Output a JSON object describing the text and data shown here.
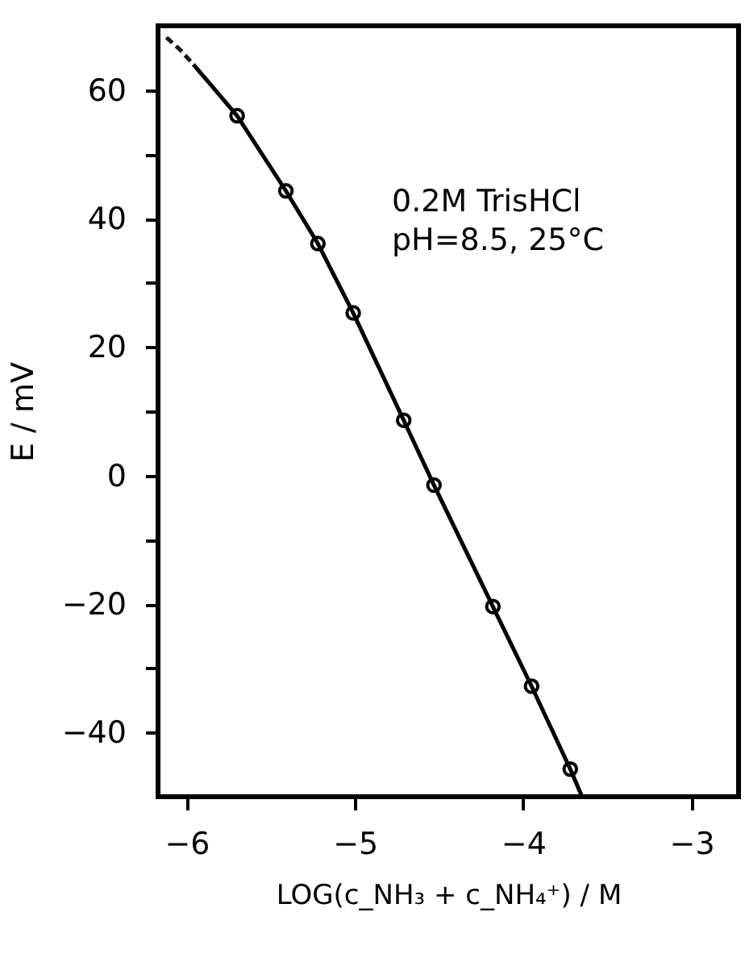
{
  "chart_data": {
    "type": "scatter",
    "xlabel": "LOG(c_NH₃ + c_NH₄⁺) / M",
    "ylabel": "E / mV",
    "annotations": [
      "0.2M TrisHCl",
      "pH=8.5,  25°C"
    ],
    "xlim": [
      -6.17,
      -2.72
    ],
    "xticks": [
      -6,
      -5,
      -4,
      -3
    ],
    "ylim": [
      -50,
      70
    ],
    "yticks": [
      60,
      {
        "value": 50,
        "label": null
      },
      40,
      {
        "value": 30,
        "label": null
      },
      20,
      {
        "value": 10,
        "label": null
      },
      0,
      {
        "value": -10,
        "label": null
      },
      -20,
      {
        "value": -30,
        "label": null
      },
      -40
    ],
    "grid": false,
    "series": [
      {
        "marker": "circle",
        "color": "#000000",
        "x": [
          -5.7,
          -5.41,
          -5.22,
          -5.01,
          -4.71,
          -4.53,
          -4.18,
          -3.95,
          -3.72
        ],
        "values": [
          56.0,
          44.3,
          36.1,
          25.3,
          8.6,
          -1.5,
          -20.4,
          -32.8,
          -45.7
        ]
      },
      {
        "type": "line",
        "line_style": "solid",
        "marker": "none",
        "color": "#000000",
        "x": [
          -5.96,
          -5.7,
          -5.41,
          -5.22,
          -5.01,
          -4.71,
          -4.53,
          -4.18,
          -3.95,
          -3.72,
          -3.65
        ],
        "values": [
          64,
          56.0,
          44.3,
          36.1,
          25.3,
          8.6,
          -1.5,
          -20.4,
          -32.8,
          -45.7,
          -50
        ]
      },
      {
        "type": "line",
        "line_style": "dashed",
        "marker": "none",
        "color": "#1a1a1a",
        "x": [
          -6.12,
          -6.04,
          -5.96
        ],
        "values": [
          68.2,
          66.3,
          64
        ]
      }
    ]
  }
}
